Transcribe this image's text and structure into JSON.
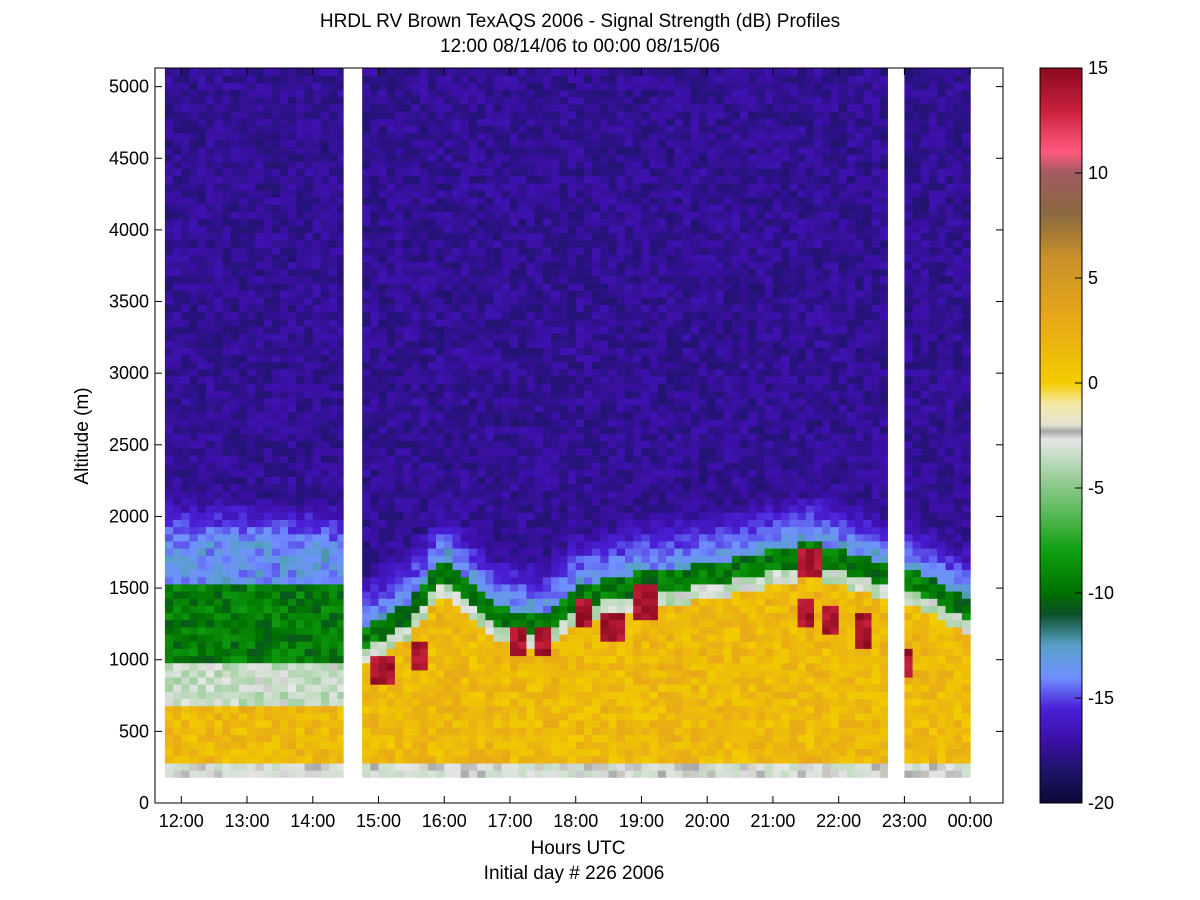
{
  "chart_data": {
    "type": "heatmap",
    "title": "HRDL RV Brown TexAQS 2006 - Signal Strength (dB) Profiles",
    "subtitle": "12:00 08/14/06 to 00:00 08/15/06",
    "xlabel": "Hours UTC",
    "xlabel2": "Initial day # 226  2006",
    "ylabel": "Altitude (m)",
    "x_ticks": [
      "12:00",
      "13:00",
      "14:00",
      "15:00",
      "16:00",
      "17:00",
      "18:00",
      "19:00",
      "20:00",
      "21:00",
      "22:00",
      "23:00",
      "00:00"
    ],
    "x_tick_hours": [
      12,
      13,
      14,
      15,
      16,
      17,
      18,
      19,
      20,
      21,
      22,
      23,
      24
    ],
    "y_ticks": [
      0,
      500,
      1000,
      1500,
      2000,
      2500,
      3000,
      3500,
      4000,
      4500,
      5000
    ],
    "xlim": [
      11.6,
      24.5
    ],
    "ylim": [
      0,
      5130
    ],
    "data_top_m": 5130,
    "data_bottom_m": 180,
    "colorbar": {
      "label_ticks": [
        15,
        10,
        5,
        0,
        -5,
        -10,
        -15,
        -20
      ],
      "range": [
        -20,
        15
      ],
      "stops": [
        {
          "v": 15,
          "c": "#8a0a20"
        },
        {
          "v": 13,
          "c": "#c8203c"
        },
        {
          "v": 11,
          "c": "#ff5a7e"
        },
        {
          "v": 10,
          "c": "#a05a60"
        },
        {
          "v": 8,
          "c": "#8c6a40"
        },
        {
          "v": 6,
          "c": "#c8902a"
        },
        {
          "v": 3,
          "c": "#e8a818"
        },
        {
          "v": 0,
          "c": "#f2cc00"
        },
        {
          "v": -1,
          "c": "#f6e8a8"
        },
        {
          "v": -2,
          "c": "#e4e2d0"
        },
        {
          "v": -2.3,
          "c": "#a8a8a8"
        },
        {
          "v": -2.7,
          "c": "#e6e6e6"
        },
        {
          "v": -5,
          "c": "#88c888"
        },
        {
          "v": -8,
          "c": "#10a010"
        },
        {
          "v": -10,
          "c": "#007000"
        },
        {
          "v": -11,
          "c": "#0c5028"
        },
        {
          "v": -12.5,
          "c": "#58a0c8"
        },
        {
          "v": -14,
          "c": "#7090ff"
        },
        {
          "v": -15.5,
          "c": "#4a20d8"
        },
        {
          "v": -17,
          "c": "#3c10a8"
        },
        {
          "v": -18.5,
          "c": "#1e1468"
        },
        {
          "v": -20,
          "c": "#0a0a38"
        }
      ]
    },
    "data_gaps_hours": [
      [
        14.47,
        14.75
      ],
      [
        22.75,
        22.98
      ]
    ],
    "boundary_layer_top_m": [
      {
        "h": 11.75,
        "top": 1850
      },
      {
        "h": 12.5,
        "top": 1850
      },
      {
        "h": 13.5,
        "top": 1850
      },
      {
        "h": 14.45,
        "top": 1800
      },
      {
        "h": 14.8,
        "top": 1300
      },
      {
        "h": 15.5,
        "top": 1500
      },
      {
        "h": 16.0,
        "top": 1800
      },
      {
        "h": 16.8,
        "top": 1450
      },
      {
        "h": 17.5,
        "top": 1400
      },
      {
        "h": 18.0,
        "top": 1600
      },
      {
        "h": 19.0,
        "top": 1700
      },
      {
        "h": 20.0,
        "top": 1750
      },
      {
        "h": 21.0,
        "top": 1850
      },
      {
        "h": 21.6,
        "top": 1900
      },
      {
        "h": 22.7,
        "top": 1750
      },
      {
        "h": 23.0,
        "top": 1750
      },
      {
        "h": 24.0,
        "top": 1500
      }
    ]
  }
}
